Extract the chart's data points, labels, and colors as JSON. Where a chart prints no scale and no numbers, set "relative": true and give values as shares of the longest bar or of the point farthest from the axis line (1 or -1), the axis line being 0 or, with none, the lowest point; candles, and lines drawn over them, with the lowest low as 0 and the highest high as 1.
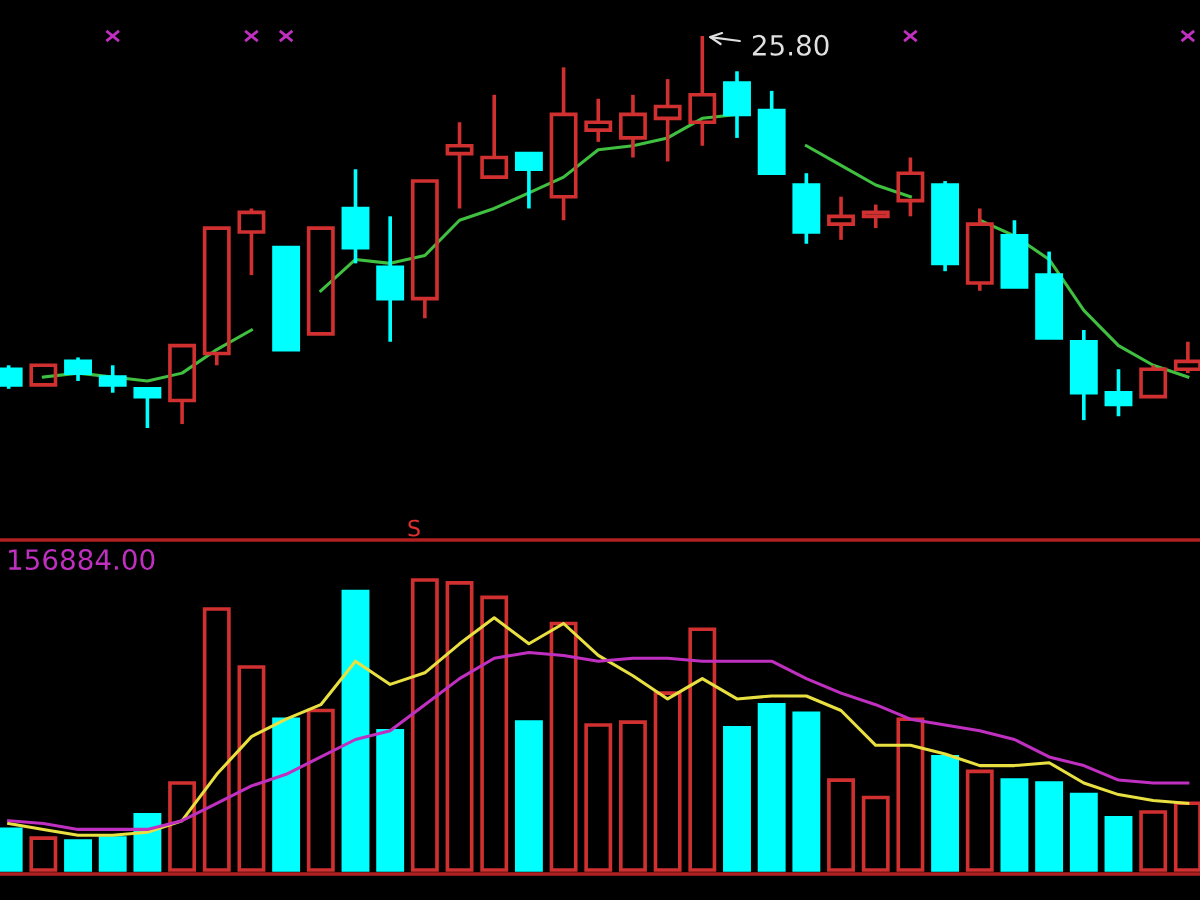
{
  "chart_data": [
    {
      "type": "candlestick",
      "relative": true,
      "categories": [
        null,
        null,
        null,
        null,
        null,
        null,
        null,
        null,
        null,
        null,
        null,
        null,
        null,
        null,
        null,
        null,
        null,
        null,
        null,
        null,
        null,
        null,
        null,
        null,
        null,
        null,
        null,
        null,
        null,
        null,
        null,
        null,
        null,
        null,
        null
      ],
      "ohlc": [
        [
          0.15,
          0.16,
          0.1,
          0.11
        ],
        [
          0.11,
          0.16,
          0.11,
          0.16
        ],
        [
          0.17,
          0.18,
          0.12,
          0.14
        ],
        [
          0.13,
          0.16,
          0.09,
          0.11
        ],
        [
          0.1,
          0.1,
          0.0,
          0.08
        ],
        [
          0.07,
          0.21,
          0.01,
          0.21
        ],
        [
          0.19,
          0.51,
          0.16,
          0.51
        ],
        [
          0.5,
          0.56,
          0.39,
          0.55
        ],
        [
          0.46,
          0.46,
          0.2,
          0.2
        ],
        [
          0.24,
          0.51,
          0.24,
          0.51
        ],
        [
          0.56,
          0.66,
          0.42,
          0.46
        ],
        [
          0.41,
          0.54,
          0.22,
          0.33
        ],
        [
          0.33,
          0.63,
          0.28,
          0.63
        ],
        [
          0.7,
          0.78,
          0.56,
          0.72
        ],
        [
          0.64,
          0.85,
          0.64,
          0.69
        ],
        [
          0.7,
          0.7,
          0.56,
          0.66
        ],
        [
          0.59,
          0.92,
          0.53,
          0.8
        ],
        [
          0.76,
          0.84,
          0.73,
          0.78
        ],
        [
          0.74,
          0.85,
          0.69,
          0.8
        ],
        [
          0.79,
          0.89,
          0.68,
          0.82
        ],
        [
          0.78,
          1.0,
          0.72,
          0.85
        ],
        [
          0.88,
          0.91,
          0.74,
          0.8
        ],
        [
          0.81,
          0.86,
          0.65,
          0.65
        ],
        [
          0.62,
          0.65,
          0.47,
          0.5
        ],
        [
          0.52,
          0.59,
          0.48,
          0.54
        ],
        [
          0.54,
          0.57,
          0.51,
          0.55
        ],
        [
          0.58,
          0.69,
          0.54,
          0.65
        ],
        [
          0.62,
          0.63,
          0.4,
          0.42
        ],
        [
          0.37,
          0.56,
          0.35,
          0.52
        ],
        [
          0.49,
          0.53,
          0.36,
          0.36
        ],
        [
          0.39,
          0.45,
          0.23,
          0.23
        ],
        [
          0.22,
          0.25,
          0.02,
          0.09
        ],
        [
          0.09,
          0.15,
          0.03,
          0.06
        ],
        [
          0.08,
          0.16,
          0.08,
          0.15
        ],
        [
          0.15,
          0.22,
          0.14,
          0.17
        ]
      ],
      "colors": [
        "#00ffff",
        "#d03030",
        "#00ffff",
        "#00ffff",
        "#00ffff",
        "#d03030",
        "#d03030",
        "#d03030",
        "#00ffff",
        "#d03030",
        "#00ffff",
        "#00ffff",
        "#d03030",
        "#d03030",
        "#d03030",
        "#00ffff",
        "#d03030",
        "#d03030",
        "#d03030",
        "#d03030",
        "#d03030",
        "#00ffff",
        "#00ffff",
        "#00ffff",
        "#d03030",
        "#d03030",
        "#d03030",
        "#00ffff",
        "#d03030",
        "#00ffff",
        "#00ffff",
        "#00ffff",
        "#00ffff",
        "#d03030",
        "#d03030"
      ],
      "series": [
        {
          "type": "line",
          "color": "#40c040",
          "values": [
            null,
            0.13,
            0.14,
            0.13,
            0.12,
            0.14,
            0.2,
            0.25,
            null,
            0.35,
            0.43,
            0.42,
            0.44,
            0.53,
            0.56,
            0.6,
            0.64,
            0.71,
            0.72,
            0.74,
            0.79,
            0.8,
            null,
            0.72,
            0.67,
            0.62,
            0.59,
            null,
            0.53,
            0.49,
            0.43,
            0.3,
            0.21,
            0.16,
            0.13
          ]
        }
      ],
      "annotations": [
        "25.80"
      ]
    },
    {
      "type": "bar",
      "relative": true,
      "categories": [
        null,
        null,
        null,
        null,
        null,
        null,
        null,
        null,
        null,
        null,
        null,
        null,
        null,
        null,
        null,
        null,
        null,
        null,
        null,
        null,
        null,
        null,
        null,
        null,
        null,
        null,
        null,
        null,
        null,
        null,
        null,
        null,
        null,
        null,
        null
      ],
      "series": [
        {
          "type": "bar",
          "colors": [
            "#00ffff",
            "#d03030",
            "#00ffff",
            "#00ffff",
            "#00ffff",
            "#d03030",
            "#d03030",
            "#d03030",
            "#00ffff",
            "#d03030",
            "#00ffff",
            "#00ffff",
            "#d03030",
            "#d03030",
            "#d03030",
            "#00ffff",
            "#d03030",
            "#d03030",
            "#d03030",
            "#d03030",
            "#d03030",
            "#00ffff",
            "#00ffff",
            "#00ffff",
            "#d03030",
            "#d03030",
            "#d03030",
            "#00ffff",
            "#d03030",
            "#00ffff",
            "#00ffff",
            "#00ffff",
            "#00ffff",
            "#d03030",
            "#d03030"
          ],
          "values": [
            0.14,
            0.11,
            0.1,
            0.11,
            0.19,
            0.3,
            0.9,
            0.7,
            0.52,
            0.55,
            0.96,
            0.48,
            1.0,
            0.99,
            0.94,
            0.51,
            0.85,
            0.5,
            0.51,
            0.61,
            0.83,
            0.49,
            0.57,
            0.54,
            0.31,
            0.25,
            0.52,
            0.39,
            0.34,
            0.31,
            0.3,
            0.26,
            0.18,
            0.2,
            0.23
          ]
        },
        {
          "type": "line",
          "color": "#e8e040",
          "values": [
            0.16,
            0.14,
            0.12,
            0.12,
            0.13,
            0.17,
            0.33,
            0.46,
            0.52,
            0.57,
            0.72,
            0.64,
            0.68,
            0.78,
            0.87,
            0.78,
            0.85,
            0.74,
            0.67,
            0.59,
            0.66,
            0.59,
            0.6,
            0.6,
            0.55,
            0.43,
            0.43,
            0.4,
            0.36,
            0.36,
            0.37,
            0.3,
            0.26,
            0.24,
            0.23
          ]
        },
        {
          "type": "line",
          "color": "#c030c0",
          "values": [
            0.17,
            0.16,
            0.14,
            0.14,
            0.14,
            0.17,
            0.23,
            0.29,
            0.33,
            0.39,
            0.45,
            0.48,
            0.57,
            0.66,
            0.73,
            0.75,
            0.74,
            0.72,
            0.73,
            0.73,
            0.72,
            0.72,
            0.72,
            0.66,
            0.61,
            0.57,
            0.52,
            0.5,
            0.48,
            0.45,
            0.39,
            0.36,
            0.31,
            0.3,
            0.3
          ]
        }
      ],
      "annotations": [
        "156884.00",
        "S"
      ]
    }
  ]
}
